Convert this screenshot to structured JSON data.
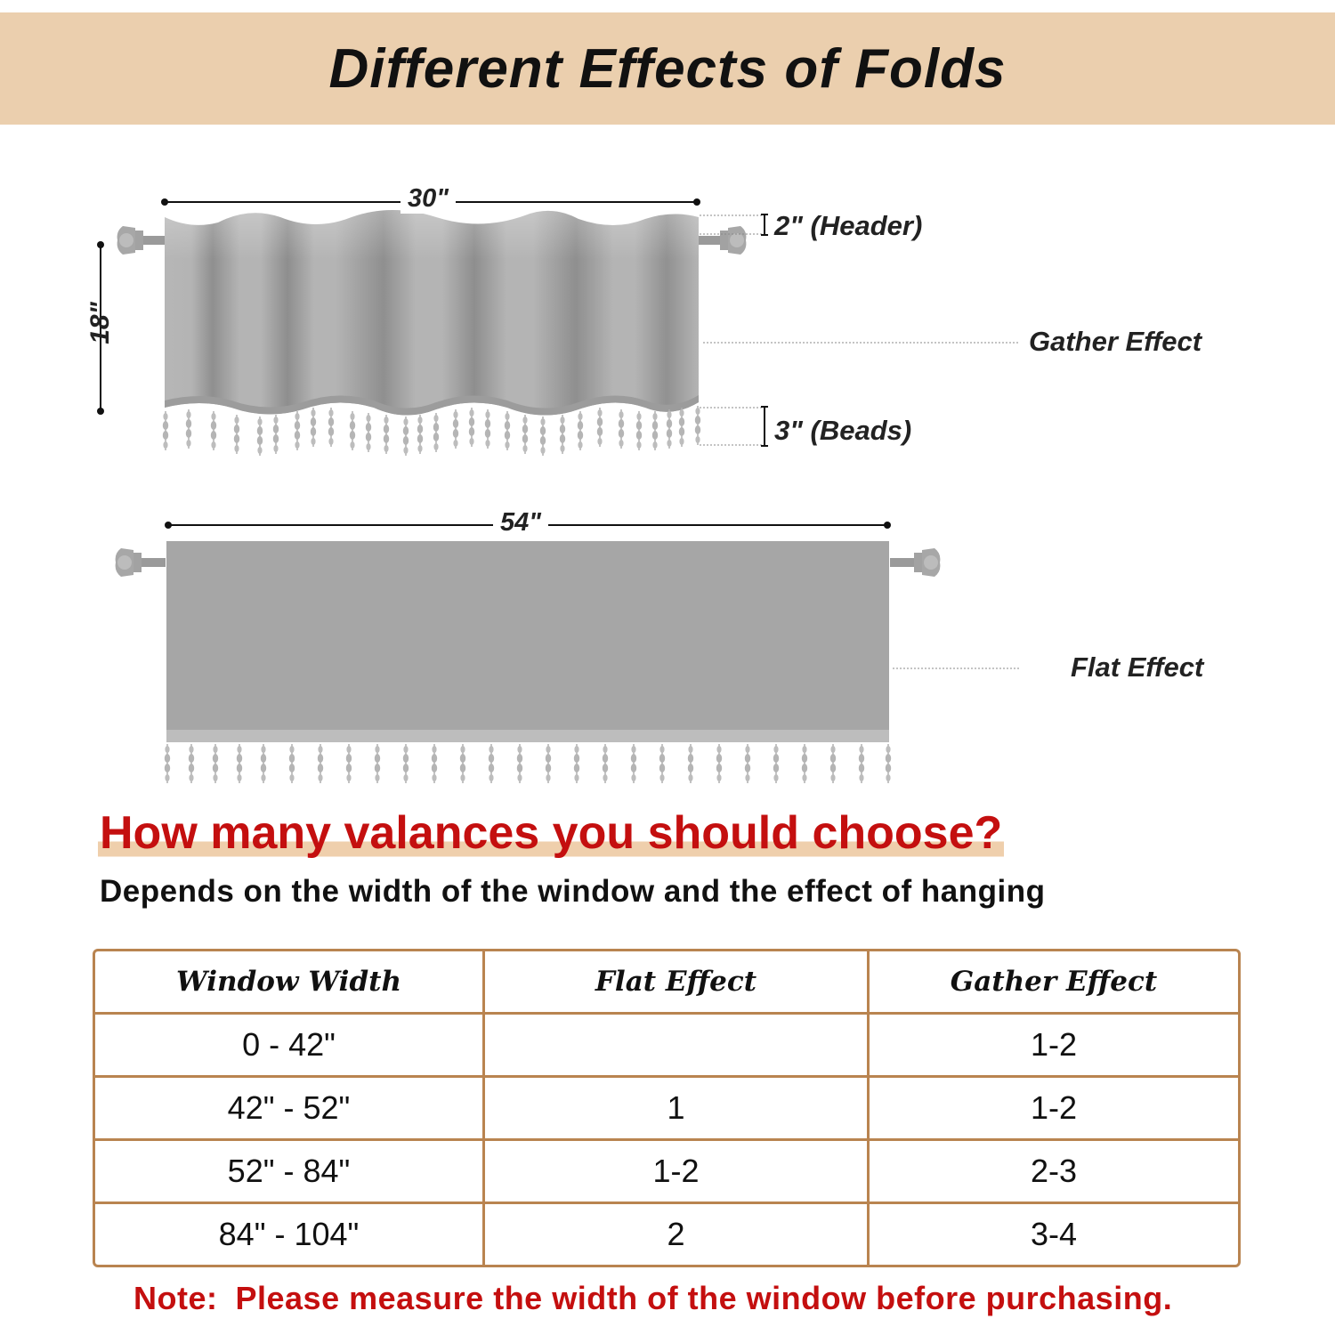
{
  "banner": {
    "title": "Different Effects of Folds"
  },
  "gather_valance": {
    "width_label": "30\"",
    "height_label": "18\"",
    "header_label": "2\" (Header)",
    "beads_label": "3\" (Beads)",
    "effect_label": "Gather Effect"
  },
  "flat_valance": {
    "width_label": "54\"",
    "effect_label": "Flat Effect"
  },
  "guide": {
    "question": "How many valances you should choose?",
    "subtitle": "Depends on the width of the window and the effect of hanging"
  },
  "table": {
    "headers": [
      "Window Width",
      "Flat Effect",
      "Gather Effect"
    ],
    "rows": [
      [
        "0 - 42\"",
        "",
        "1-2"
      ],
      [
        "42\" - 52\"",
        "1",
        "1-2"
      ],
      [
        "52\" - 84\"",
        "1-2",
        "2-3"
      ],
      [
        "84\" - 104\"",
        "2",
        "3-4"
      ]
    ]
  },
  "note": {
    "label": "Note:",
    "text": "Please measure the width of the window before purchasing."
  },
  "colors": {
    "banner_bg": "#ebcfae",
    "accent_red": "#c40f0f",
    "table_border": "#b98450",
    "fabric_gray": "#a6a6a6"
  }
}
